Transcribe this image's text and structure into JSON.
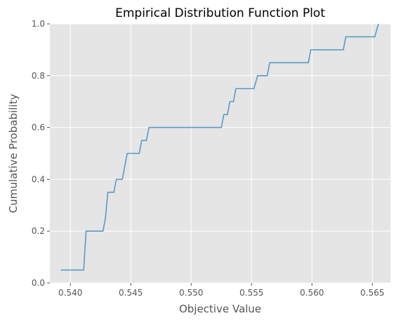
{
  "chart_data": {
    "type": "line",
    "title": "Empirical Distribution Function Plot",
    "xlabel": "Objective Value",
    "ylabel": "Cumulative Probability",
    "xlim": [
      0.5383,
      0.5665
    ],
    "ylim": [
      0.0,
      1.0
    ],
    "x_ticks": [
      0.54,
      0.545,
      0.55,
      0.555,
      0.56,
      0.565
    ],
    "x_tick_labels": [
      "0.540",
      "0.545",
      "0.550",
      "0.555",
      "0.560",
      "0.565"
    ],
    "y_ticks": [
      0.0,
      0.2,
      0.4,
      0.6,
      0.8,
      1.0
    ],
    "y_tick_labels": [
      "0.0",
      "0.2",
      "0.4",
      "0.6",
      "0.8",
      "1.0"
    ],
    "grid": true,
    "style": "ggplot",
    "colors": {
      "plot_background": "#e5e5e5",
      "grid": "#ffffff",
      "line": "#5b9bc6",
      "text": "#555555"
    },
    "series": [
      {
        "x": [
          0.5392,
          0.5411,
          0.5413,
          0.5427,
          0.5429,
          0.5431,
          0.5436,
          0.5438,
          0.5443,
          0.5445,
          0.5447,
          0.5457,
          0.5459,
          0.5463,
          0.5465,
          0.547,
          0.5525,
          0.5527,
          0.553,
          0.5532,
          0.5535,
          0.5537,
          0.5541,
          0.5552,
          0.5555,
          0.5563,
          0.5565,
          0.5597,
          0.5599,
          0.5626,
          0.5628,
          0.5652,
          0.5655
        ],
        "y": [
          0.05,
          0.05,
          0.2,
          0.2,
          0.25,
          0.35,
          0.35,
          0.4,
          0.4,
          0.45,
          0.5,
          0.5,
          0.55,
          0.55,
          0.6,
          0.6,
          0.6,
          0.65,
          0.65,
          0.7,
          0.7,
          0.75,
          0.75,
          0.75,
          0.8,
          0.8,
          0.85,
          0.85,
          0.9,
          0.9,
          0.95,
          0.95,
          1.0
        ]
      }
    ]
  }
}
